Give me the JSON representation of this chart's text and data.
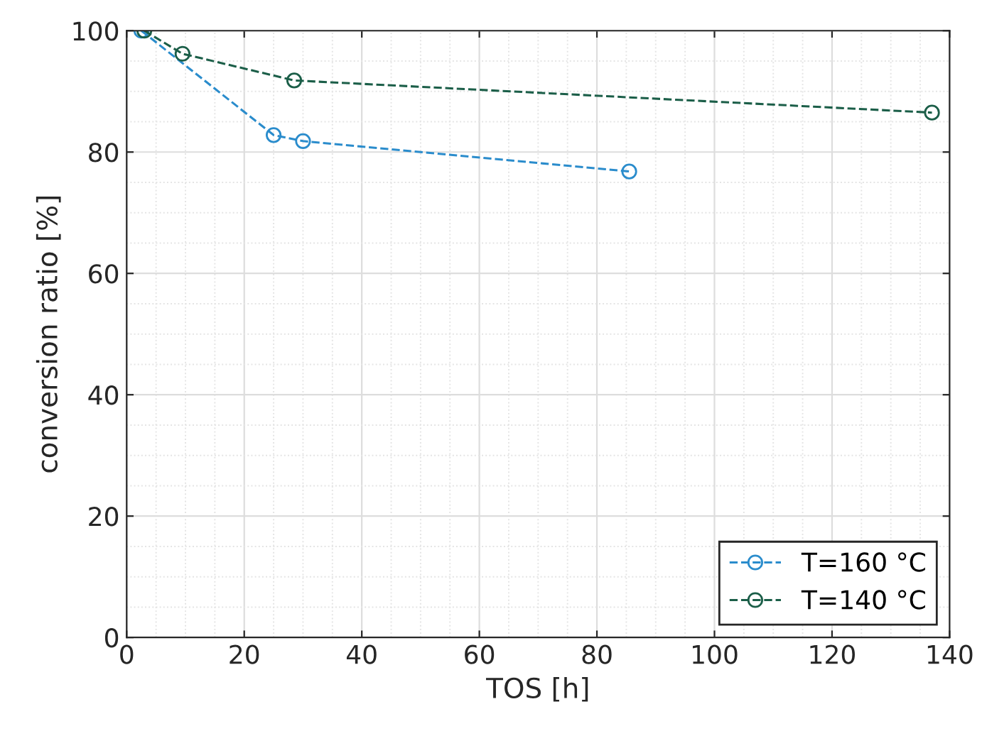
{
  "chart_data": {
    "type": "line",
    "xlabel": "TOS [h]",
    "ylabel": "conversion ratio [%]",
    "xlim": [
      0,
      140
    ],
    "xticks": [
      0,
      20,
      40,
      60,
      80,
      100,
      120,
      140
    ],
    "ylim": [
      0,
      100
    ],
    "yticks": [
      0,
      20,
      40,
      60,
      80,
      100
    ],
    "grid": true,
    "legend": "bottom right",
    "marker": "circle",
    "line_style": "dashed",
    "series": [
      {
        "name": "T=160 °C",
        "color": "#2a8ccc",
        "x": [
          2.5,
          25,
          30,
          85.5
        ],
        "values": [
          100,
          82.8,
          81.8,
          76.8
        ]
      },
      {
        "name": "T=140 °C",
        "color": "#1b5e48",
        "x": [
          3,
          9.5,
          28.5,
          137
        ],
        "values": [
          100,
          96.2,
          91.8,
          86.5
        ]
      }
    ]
  }
}
